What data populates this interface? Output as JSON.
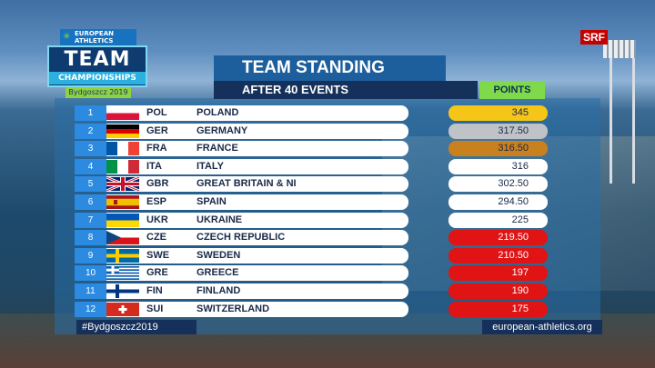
{
  "logo": {
    "brand": "EUROPEAN ATHLETICS",
    "team": "TEAM",
    "championships": "CHAMPIONSHIPS",
    "city": "Bydgoszcz 2019"
  },
  "broadcaster": "SRF",
  "header": {
    "title": "TEAM STANDING",
    "subtitle": "AFTER 40 EVENTS",
    "points_label": "POINTS"
  },
  "standings": [
    {
      "rank": "1",
      "code": "POL",
      "country": "POLAND",
      "points": "345",
      "flag": "pl",
      "points_bg": "#f5c518",
      "points_color": "#1a2a48"
    },
    {
      "rank": "2",
      "code": "GER",
      "country": "GERMANY",
      "points": "317.50",
      "flag": "de",
      "points_bg": "#bfc3c8",
      "points_color": "#1a2a48"
    },
    {
      "rank": "3",
      "code": "FRA",
      "country": "FRANCE",
      "points": "316.50",
      "flag": "fr",
      "points_bg": "#c9801e",
      "points_color": "#1a2a48"
    },
    {
      "rank": "4",
      "code": "ITA",
      "country": "ITALY",
      "points": "316",
      "flag": "it",
      "points_bg": "#ffffff",
      "points_color": "#1a2a48"
    },
    {
      "rank": "5",
      "code": "GBR",
      "country": "GREAT BRITAIN & NI",
      "points": "302.50",
      "flag": "gb",
      "points_bg": "#ffffff",
      "points_color": "#1a2a48"
    },
    {
      "rank": "6",
      "code": "ESP",
      "country": "SPAIN",
      "points": "294.50",
      "flag": "es",
      "points_bg": "#ffffff",
      "points_color": "#1a2a48"
    },
    {
      "rank": "7",
      "code": "UKR",
      "country": "UKRAINE",
      "points": "225",
      "flag": "ua",
      "points_bg": "#ffffff",
      "points_color": "#1a2a48"
    },
    {
      "rank": "8",
      "code": "CZE",
      "country": "CZECH REPUBLIC",
      "points": "219.50",
      "flag": "cz",
      "points_bg": "#e01414",
      "points_color": "#ffffff"
    },
    {
      "rank": "9",
      "code": "SWE",
      "country": "SWEDEN",
      "points": "210.50",
      "flag": "se",
      "points_bg": "#e01414",
      "points_color": "#ffffff"
    },
    {
      "rank": "10",
      "code": "GRE",
      "country": "GREECE",
      "points": "197",
      "flag": "gr",
      "points_bg": "#e01414",
      "points_color": "#ffffff"
    },
    {
      "rank": "11",
      "code": "FIN",
      "country": "FINLAND",
      "points": "190",
      "flag": "fi",
      "points_bg": "#e01414",
      "points_color": "#ffffff"
    },
    {
      "rank": "12",
      "code": "SUI",
      "country": "SWITZERLAND",
      "points": "175",
      "flag": "ch",
      "points_bg": "#e01414",
      "points_color": "#ffffff"
    }
  ],
  "footer": {
    "hashtag": "#Bydgoszcz2019",
    "url": "european-athletics.org"
  }
}
